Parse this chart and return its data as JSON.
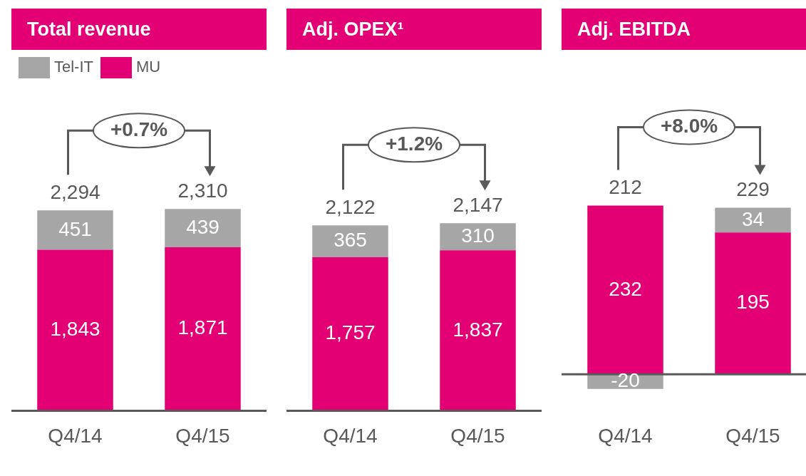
{
  "chart_data": [
    {
      "type": "bar",
      "title": "Total revenue",
      "categories": [
        "Q4/14",
        "Q4/15"
      ],
      "stacked": true,
      "data_labels": true,
      "legend": "top left",
      "tick_labels": "x",
      "series": [
        {
          "name": "MU",
          "color": "#e20074",
          "values": [
            1843,
            1871
          ],
          "value_labels": [
            "1,843",
            "1,871"
          ]
        },
        {
          "name": "Tel-IT",
          "color": "#a6a6a6",
          "values": [
            451,
            439
          ],
          "value_labels": [
            "451",
            "439"
          ]
        }
      ],
      "totals": [
        "2,294",
        "2,310"
      ],
      "annotations": [
        "+0.7%"
      ]
    },
    {
      "type": "bar",
      "title": "Adj. OPEX¹",
      "categories": [
        "Q4/14",
        "Q4/15"
      ],
      "stacked": true,
      "data_labels": true,
      "tick_labels": "x",
      "series": [
        {
          "color": "#e20074",
          "values": [
            1757,
            1837
          ],
          "value_labels": [
            "1,757",
            "1,837"
          ]
        },
        {
          "color": "#a6a6a6",
          "values": [
            365,
            310
          ],
          "value_labels": [
            "365",
            "310"
          ]
        }
      ],
      "totals": [
        "2,122",
        "2,147"
      ],
      "annotations": [
        "+1.2%"
      ]
    },
    {
      "type": "bar",
      "title": "Adj. EBITDA",
      "categories": [
        "Q4/14",
        "Q4/15"
      ],
      "stacked": true,
      "data_labels": true,
      "tick_labels": "x",
      "series": [
        {
          "color": "#e20074",
          "values": [
            232,
            195
          ],
          "value_labels": [
            "232",
            "195"
          ]
        },
        {
          "color": "#a6a6a6",
          "values": [
            -20,
            34
          ],
          "value_labels": [
            "-20",
            "34"
          ]
        }
      ],
      "totals": [
        "212",
        "229"
      ],
      "annotations": [
        "+8.0%"
      ]
    }
  ]
}
